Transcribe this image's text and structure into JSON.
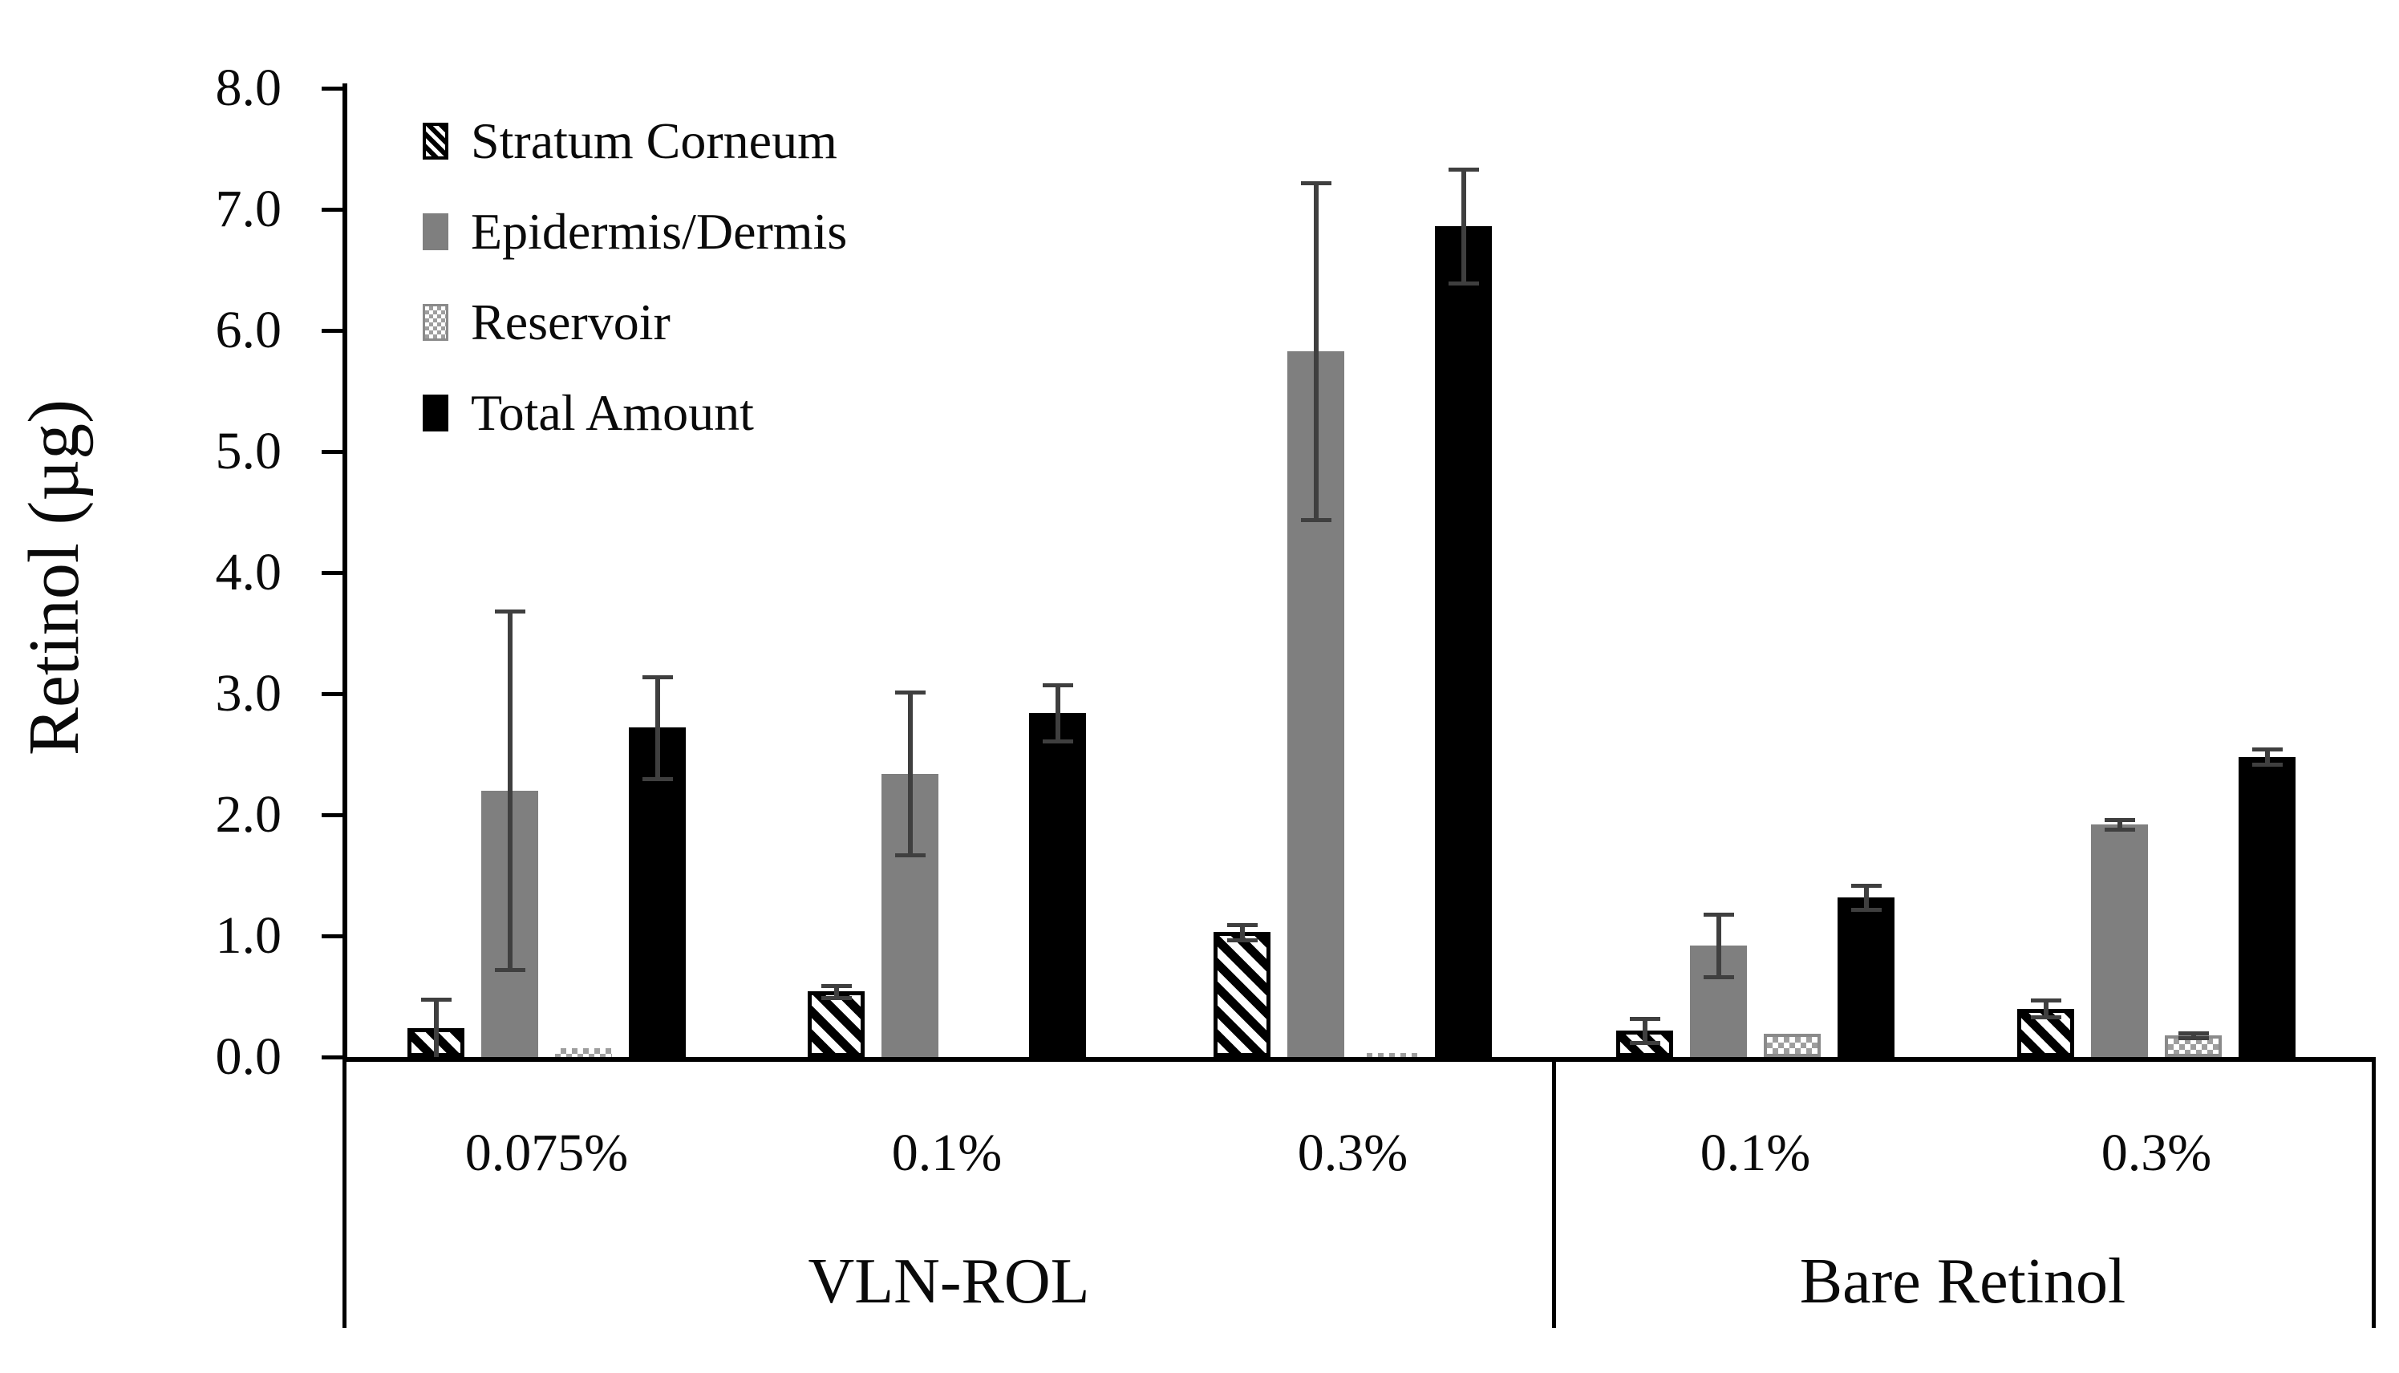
{
  "figure": {
    "background": "#ffffff",
    "text_color": "#0a0a0a"
  },
  "chart_data": {
    "type": "bar",
    "title": "",
    "xlabel": "",
    "ylabel": "Retinol (µg)",
    "ylim": [
      0,
      8
    ],
    "ytick_step": 1.0,
    "ytick_labels": [
      "0.0",
      "1.0",
      "2.0",
      "3.0",
      "4.0",
      "5.0",
      "6.0",
      "7.0",
      "8.0"
    ],
    "grid": false,
    "legend_position": "top-left-inside",
    "error_bar_color": "#3f3f3f",
    "group_sections": [
      {
        "label": "VLN-ROL",
        "categories": [
          "0.075%",
          "0.1%",
          "0.3%"
        ]
      },
      {
        "label": "Bare Retinol",
        "categories": [
          "0.1%",
          "0.3%"
        ]
      }
    ],
    "categories": [
      "0.075%",
      "0.1%",
      "0.3%",
      "0.1%",
      "0.3%"
    ],
    "series": [
      {
        "name": "Stratum Corneum",
        "fill": "hatch-diagonal",
        "color": "#000000",
        "values": [
          0.24,
          0.54,
          1.03,
          0.22,
          0.4
        ],
        "errors": [
          0.24,
          0.05,
          0.06,
          0.1,
          0.07
        ]
      },
      {
        "name": "Epidermis/Dermis",
        "fill": "solid",
        "color": "#7f7f7f",
        "values": [
          2.2,
          2.34,
          5.83,
          0.92,
          1.92
        ],
        "errors": [
          1.48,
          0.67,
          1.39,
          0.26,
          0.04
        ]
      },
      {
        "name": "Reservoir",
        "fill": "checker-dots",
        "color": "#9e9e9e",
        "values": [
          0.07,
          0.01,
          0.03,
          0.19,
          0.18
        ],
        "errors": [
          null,
          null,
          null,
          null,
          0.02
        ]
      },
      {
        "name": "Total Amount",
        "fill": "solid",
        "color": "#000000",
        "values": [
          2.72,
          2.84,
          6.86,
          1.32,
          2.48
        ],
        "errors": [
          0.42,
          0.23,
          0.47,
          0.1,
          0.06
        ]
      }
    ]
  }
}
